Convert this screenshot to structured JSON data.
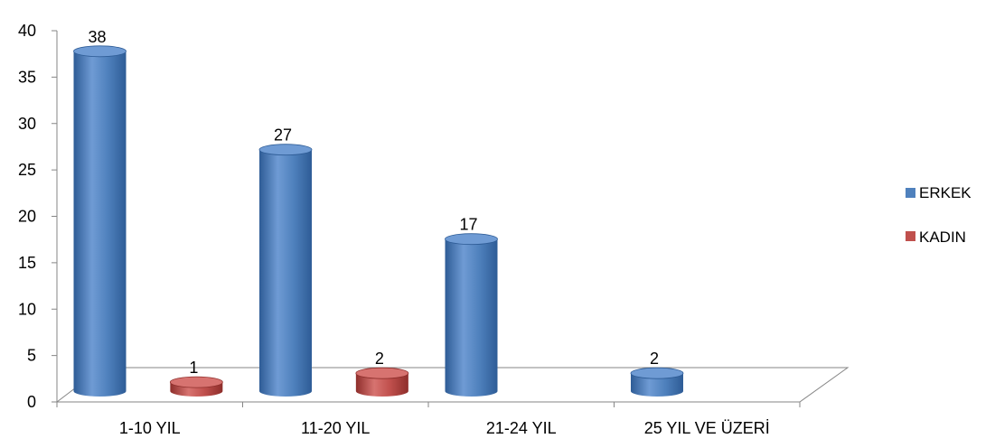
{
  "chart_data": {
    "type": "bar",
    "categories": [
      "1-10 YIL",
      "11-20 YIL",
      "21-24 YIL",
      "25 YIL VE ÜZERİ"
    ],
    "series": [
      {
        "name": "ERKEK",
        "color": "#4F81BD",
        "shade": "#2E5C96",
        "top": "#6F9BD4",
        "values": [
          38,
          27,
          17,
          2
        ]
      },
      {
        "name": "KADIN",
        "color": "#C0504D",
        "shade": "#8E2E2B",
        "top": "#D77370",
        "values": [
          1,
          2,
          null,
          null
        ]
      }
    ],
    "ylim": [
      0,
      40
    ],
    "yticks": [
      0,
      5,
      10,
      15,
      20,
      25,
      30,
      35,
      40
    ],
    "legend_position": "right",
    "data_labels": true,
    "grid": false
  }
}
